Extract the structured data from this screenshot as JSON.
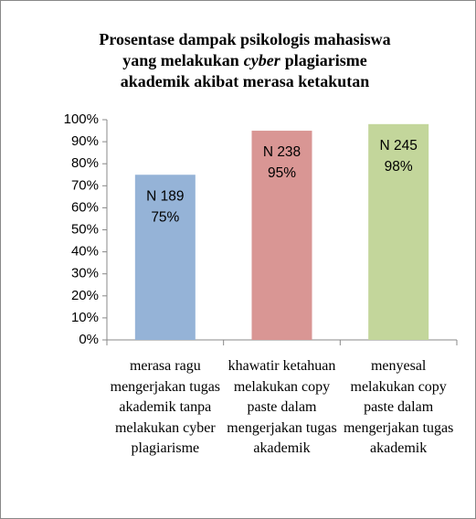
{
  "chart_data": {
    "type": "bar",
    "title": [
      "Prosentase dampak psikologis mahasiswa",
      "yang melakukan",
      "cyber",
      "plagiarisme",
      "akademik akibat merasa ketakutan"
    ],
    "categories": [
      "merasa ragu mengerjakan tugas akademik tanpa melakukan cyber plagiarisme",
      "khawatir ketahuan melakukan copy paste dalam mengerjakan tugas akademik",
      "menyesal melakukan copy paste dalam mengerjakan tugas akademik"
    ],
    "values": [
      75,
      95,
      98
    ],
    "value_labels": [
      "75%",
      "95%",
      "98%"
    ],
    "n_labels": [
      "N 189",
      "N 238",
      "N 245"
    ],
    "colors": [
      "#95b3d7",
      "#d99694",
      "#c3d69b"
    ],
    "ylim": [
      0,
      100
    ],
    "yticks": [
      {
        "value": 0,
        "label": "0%"
      },
      {
        "value": 10,
        "label": "10%"
      },
      {
        "value": 20,
        "label": "20%"
      },
      {
        "value": 30,
        "label": "30%"
      },
      {
        "value": 40,
        "label": "40%"
      },
      {
        "value": 50,
        "label": "50%"
      },
      {
        "value": 60,
        "label": "60%"
      },
      {
        "value": 70,
        "label": "70%"
      },
      {
        "value": 80,
        "label": "80%"
      },
      {
        "value": 90,
        "label": "90%"
      },
      {
        "value": 100,
        "label": "100%"
      }
    ]
  }
}
